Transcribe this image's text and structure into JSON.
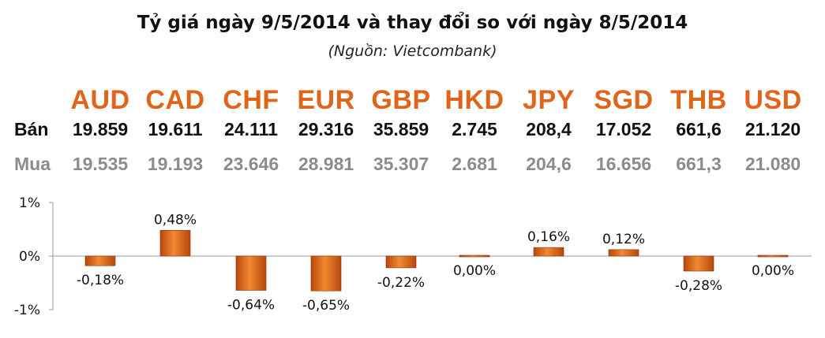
{
  "title": "Tỷ giá ngày 9/5/2014 và thay đổi so với ngày 8/5/2014",
  "subtitle": "(Nguồn: Vietcombank)",
  "table": {
    "currencies": [
      "AUD",
      "CAD",
      "CHF",
      "EUR",
      "GBP",
      "HKD",
      "JPY",
      "SGD",
      "THB",
      "USD"
    ],
    "sell_label": "Bán",
    "sell": [
      "19.859",
      "19.611",
      "24.111",
      "29.316",
      "35.859",
      "2.745",
      "208,4",
      "17.052",
      "661,6",
      "21.120"
    ],
    "buy_label": "Mua",
    "buy": [
      "19.535",
      "19.193",
      "23.646",
      "28.981",
      "35.307",
      "2.681",
      "204,6",
      "16.656",
      "661,3",
      "21.080"
    ]
  },
  "colors": {
    "accent": "#e0651a",
    "bar_light": "#f08a30",
    "bar_dark": "#b9460c",
    "sell_text": "#111111",
    "buy_text": "#8c8c8c"
  },
  "chart_data": {
    "type": "bar",
    "categories": [
      "AUD",
      "CAD",
      "CHF",
      "EUR",
      "GBP",
      "HKD",
      "JPY",
      "SGD",
      "THB",
      "USD"
    ],
    "values": [
      -0.18,
      0.48,
      -0.64,
      -0.65,
      -0.22,
      0.0,
      0.16,
      0.12,
      -0.28,
      0.0
    ],
    "data_labels": [
      "-0,18%",
      "0,48%",
      "-0,64%",
      "-0,65%",
      "-0,22%",
      "0,00%",
      "0,16%",
      "0,12%",
      "-0,28%",
      "0,00%"
    ],
    "y_ticks": [
      "1%",
      "0%",
      "-1%"
    ],
    "y_tick_values": [
      1,
      0,
      -1
    ],
    "ylim": [
      -1,
      1
    ],
    "unit": "%",
    "grid": false
  }
}
